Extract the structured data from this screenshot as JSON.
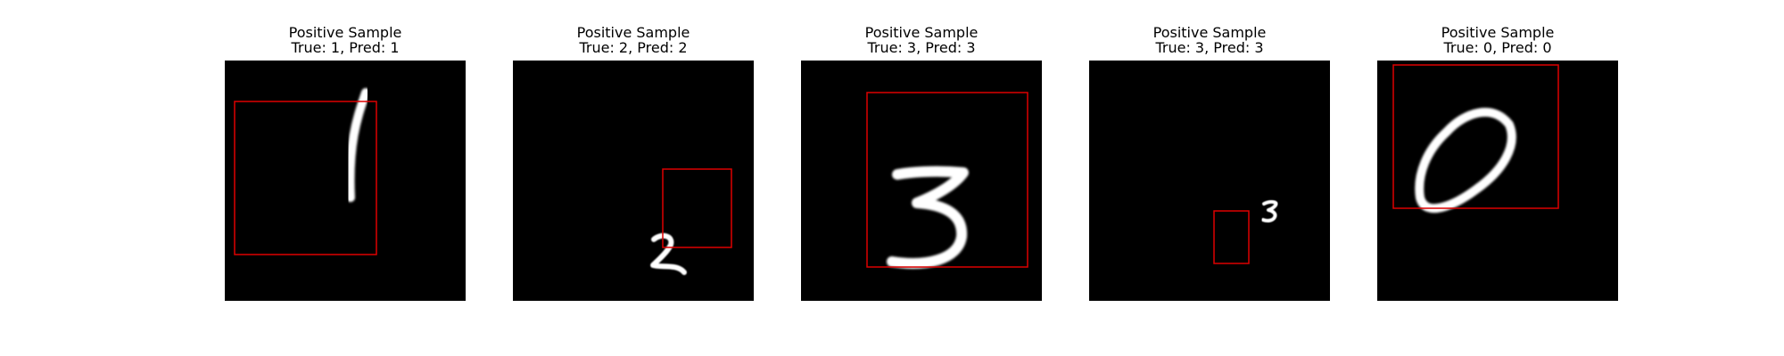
{
  "figure": {
    "panels": [
      {
        "title": "Positive Sample",
        "subtitle": "True: 1, Pred: 1",
        "true_label": 1,
        "pred_label": 1,
        "digit_glyph": "digit-one"
      },
      {
        "title": "Positive Sample",
        "subtitle": "True: 2, Pred: 2",
        "true_label": 2,
        "pred_label": 2,
        "digit_glyph": "digit-two"
      },
      {
        "title": "Positive Sample",
        "subtitle": "True: 3, Pred: 3",
        "true_label": 3,
        "pred_label": 3,
        "digit_glyph": "digit-three"
      },
      {
        "title": "Positive Sample",
        "subtitle": "True: 3, Pred: 3",
        "true_label": 3,
        "pred_label": 3,
        "digit_glyph": "digit-three-small"
      },
      {
        "title": "Positive Sample",
        "subtitle": "True: 0, Pred: 0",
        "true_label": 0,
        "pred_label": 0,
        "digit_glyph": "digit-zero"
      }
    ],
    "colors": {
      "background": "#000000",
      "digit": "#ffffff",
      "box": "#dd0000"
    }
  }
}
